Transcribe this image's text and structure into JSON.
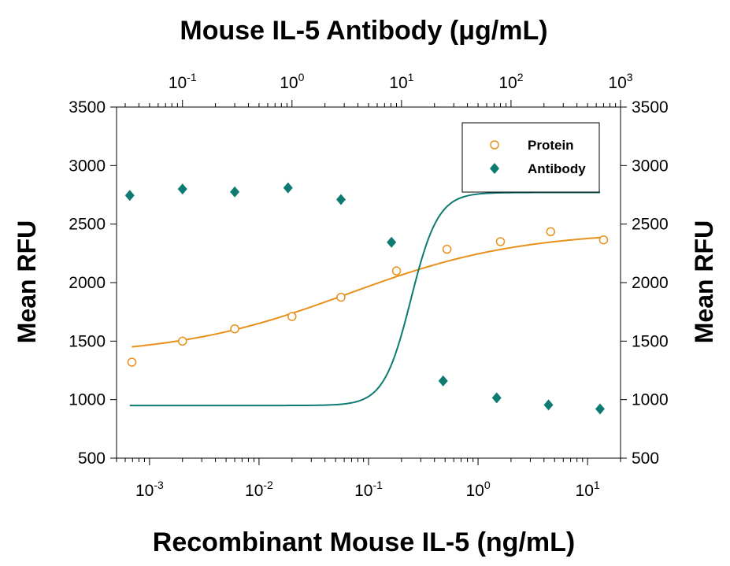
{
  "chart_data": {
    "type": "scatter",
    "title": "Mouse IL-5 Antibody (μg/mL)",
    "xlabel": "Recombinant Mouse IL-5 (ng/mL)",
    "ylabel_left": "Mean RFU",
    "ylabel_right": "Mean RFU",
    "x_scale": "log",
    "xlim": [
      0.0005,
      20
    ],
    "x_ticks": [
      {
        "value": 0.001,
        "base": "10",
        "exp": "-3"
      },
      {
        "value": 0.01,
        "base": "10",
        "exp": "-2"
      },
      {
        "value": 0.1,
        "base": "10",
        "exp": "-1"
      },
      {
        "value": 1,
        "base": "10",
        "exp": "0"
      },
      {
        "value": 10,
        "base": "10",
        "exp": "1"
      }
    ],
    "top_axis": {
      "scale": "log",
      "label": "Mouse IL-5 Antibody (μg/mL)",
      "xlim": [
        0.025,
        1000
      ],
      "ticks": [
        {
          "value": 0.1,
          "base": "10",
          "exp": "-1"
        },
        {
          "value": 1,
          "base": "10",
          "exp": "0"
        },
        {
          "value": 10,
          "base": "10",
          "exp": "1"
        },
        {
          "value": 100,
          "base": "10",
          "exp": "2"
        },
        {
          "value": 1000,
          "base": "10",
          "exp": "3"
        }
      ]
    },
    "ylim": [
      500,
      3500
    ],
    "y_ticks": [
      500,
      1000,
      1500,
      2000,
      2500,
      3000,
      3500
    ],
    "grid": false,
    "legend": {
      "position": "top-right",
      "entries": [
        "Protein",
        "Antibody"
      ]
    },
    "series": [
      {
        "name": "Protein",
        "axis": "bottom",
        "color": "#e8901a",
        "marker": "open-circle",
        "points": [
          [
            0.00069,
            1320
          ],
          [
            0.002,
            1500
          ],
          [
            0.006,
            1605
          ],
          [
            0.02,
            1710
          ],
          [
            0.056,
            1875
          ],
          [
            0.18,
            2100
          ],
          [
            0.52,
            2285
          ],
          [
            1.6,
            2350
          ],
          [
            4.6,
            2435
          ],
          [
            14,
            2365
          ]
        ],
        "fit": {
          "bottom": 1370,
          "top": 2440,
          "ec50": 0.065,
          "hill": 0.55
        }
      },
      {
        "name": "Antibody",
        "axis": "top",
        "color": "#0e7b72",
        "marker": "filled-diamond",
        "points": [
          [
            0.033,
            2745
          ],
          [
            0.1,
            2800
          ],
          [
            0.3,
            2775
          ],
          [
            0.92,
            2810
          ],
          [
            2.8,
            2710
          ],
          [
            8.1,
            2345
          ],
          [
            24,
            1160
          ],
          [
            74,
            1015
          ],
          [
            220,
            955
          ],
          [
            650,
            920
          ]
        ],
        "fit": {
          "bottom": 950,
          "top": 2770,
          "ec50": 12.2,
          "hill": 3.5
        }
      }
    ]
  }
}
